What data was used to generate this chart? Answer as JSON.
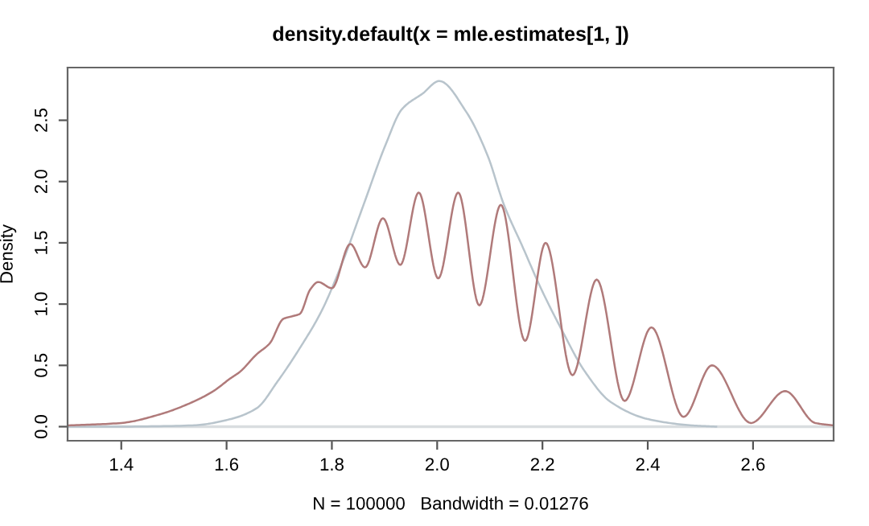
{
  "chart_data": {
    "type": "line",
    "title": "density.default(x = mle.estimates[1, ])",
    "xlabel": "N = 100000   Bandwidth = 0.01276",
    "ylabel": "Density",
    "xlim": [
      1.298,
      2.753
    ],
    "ylim": [
      -0.115,
      2.93
    ],
    "xticks": [
      1.4,
      1.6,
      1.8,
      {
        "value": 2,
        "label": "2.0"
      },
      2.2,
      2.4,
      2.6
    ],
    "yticks": [
      {
        "value": 0,
        "label": "0.0"
      },
      0.5,
      {
        "value": 1,
        "label": "1.0"
      },
      1.5,
      {
        "value": 2,
        "label": "2.0"
      },
      2.5
    ],
    "grid": false,
    "legend": false,
    "marker": "none",
    "line_style": "solid",
    "ref_lines": [
      {
        "axis": "y",
        "value": 0,
        "color": "#d9dde0"
      }
    ],
    "series": [
      {
        "color": "#b8c4cc",
        "x": [
          1.3,
          1.38,
          1.535,
          1.606,
          1.657,
          1.697,
          1.739,
          1.78,
          1.82,
          1.861,
          1.902,
          1.933,
          1.973,
          2.004,
          2.055,
          2.096,
          2.126,
          2.162,
          2.198,
          2.239,
          2.279,
          2.33,
          2.402,
          2.484,
          2.53
        ],
        "values": [
          0.0,
          0.0,
          0.01,
          0.06,
          0.15,
          0.37,
          0.64,
          0.94,
          1.34,
          1.82,
          2.3,
          2.59,
          2.72,
          2.82,
          2.57,
          2.21,
          1.82,
          1.47,
          1.12,
          0.77,
          0.46,
          0.2,
          0.06,
          0.01,
          0.0
        ]
      },
      {
        "color": "#b07a7a",
        "x": [
          1.3,
          1.4,
          1.473,
          1.535,
          1.575,
          1.606,
          1.626,
          1.657,
          1.682,
          1.708,
          1.724,
          1.739,
          1.759,
          1.774,
          1.8,
          1.835,
          1.863,
          1.897,
          1.93,
          1.965,
          2.002,
          2.04,
          2.08,
          2.121,
          2.167,
          2.206,
          2.257,
          2.303,
          2.356,
          2.407,
          2.468,
          2.522,
          2.596,
          2.661,
          2.718,
          2.753
        ],
        "values": [
          0.01,
          0.03,
          0.1,
          0.2,
          0.29,
          0.39,
          0.45,
          0.59,
          0.68,
          0.88,
          0.9,
          0.92,
          1.12,
          1.18,
          1.13,
          1.49,
          1.3,
          1.7,
          1.32,
          1.91,
          1.21,
          1.91,
          0.99,
          1.81,
          0.7,
          1.5,
          0.42,
          1.2,
          0.21,
          0.81,
          0.08,
          0.5,
          0.03,
          0.29,
          0.03,
          0.01
        ]
      }
    ]
  }
}
